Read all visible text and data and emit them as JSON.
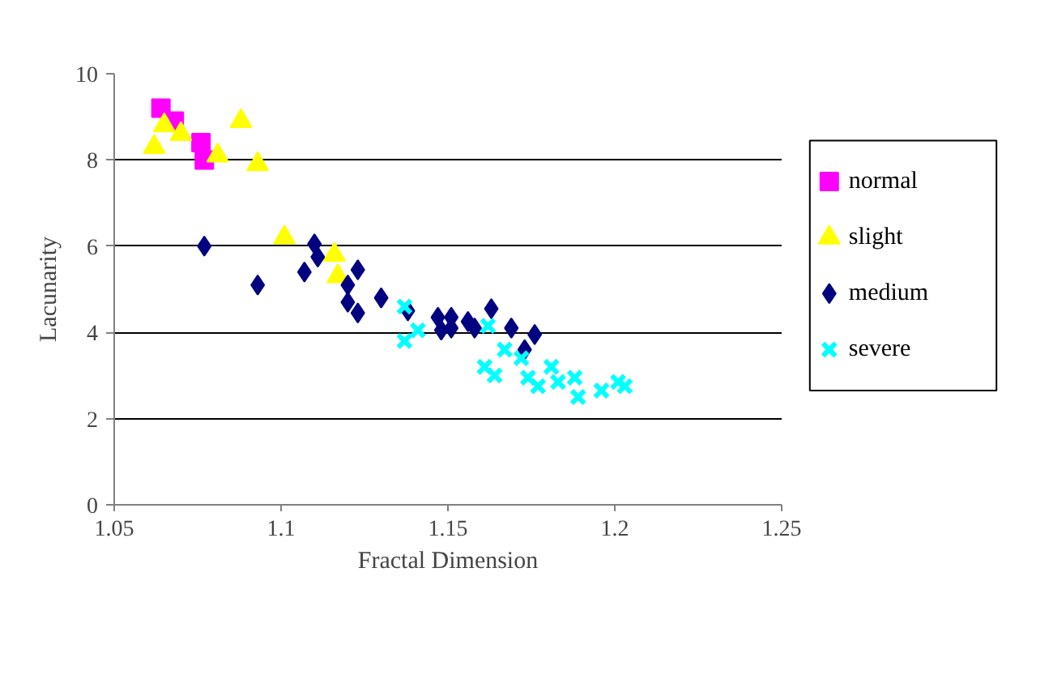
{
  "chart_data": {
    "type": "scatter",
    "xlabel": "Fractal Dimension",
    "ylabel": "Lacunarity",
    "xlim": [
      1.05,
      1.25
    ],
    "xticks": [
      1.05,
      1.1,
      1.15,
      1.2,
      1.25
    ],
    "ylim": [
      0,
      10
    ],
    "yticks": [
      0,
      2,
      4,
      6,
      8,
      10
    ],
    "grid": "y",
    "legend": "right",
    "series": [
      {
        "name": "normal",
        "color": "#ff00ff",
        "marker": "square",
        "x": [
          1.064,
          1.068,
          1.076,
          1.077
        ],
        "values": [
          9.2,
          8.9,
          8.4,
          8.0
        ]
      },
      {
        "name": "slight",
        "color": "#ffff00",
        "marker": "triangle",
        "x": [
          1.062,
          1.065,
          1.07,
          1.081,
          1.088,
          1.093,
          1.101,
          1.116,
          1.117
        ],
        "values": [
          8.3,
          8.8,
          8.6,
          8.1,
          8.9,
          7.9,
          6.2,
          5.8,
          5.3
        ]
      },
      {
        "name": "medium",
        "color": "#000080",
        "marker": "diamond",
        "x": [
          1.077,
          1.093,
          1.107,
          1.11,
          1.111,
          1.123,
          1.12,
          1.12,
          1.123,
          1.13,
          1.138,
          1.147,
          1.151,
          1.148,
          1.151,
          1.156,
          1.158,
          1.163,
          1.169,
          1.176,
          1.173
        ],
        "values": [
          6.0,
          5.1,
          5.4,
          6.05,
          5.75,
          5.45,
          5.1,
          4.7,
          4.45,
          4.8,
          4.5,
          4.35,
          4.35,
          4.05,
          4.1,
          4.25,
          4.1,
          4.55,
          4.1,
          3.95,
          3.6
        ]
      },
      {
        "name": "severe",
        "color": "#00ffff",
        "marker": "cross",
        "x": [
          1.137,
          1.137,
          1.141,
          1.162,
          1.161,
          1.164,
          1.167,
          1.172,
          1.174,
          1.181,
          1.177,
          1.183,
          1.188,
          1.189,
          1.196,
          1.201,
          1.203
        ],
        "values": [
          4.6,
          3.8,
          4.05,
          4.15,
          3.2,
          3.0,
          3.6,
          3.4,
          2.95,
          3.2,
          2.75,
          2.85,
          2.95,
          2.5,
          2.65,
          2.85,
          2.75
        ]
      }
    ]
  }
}
